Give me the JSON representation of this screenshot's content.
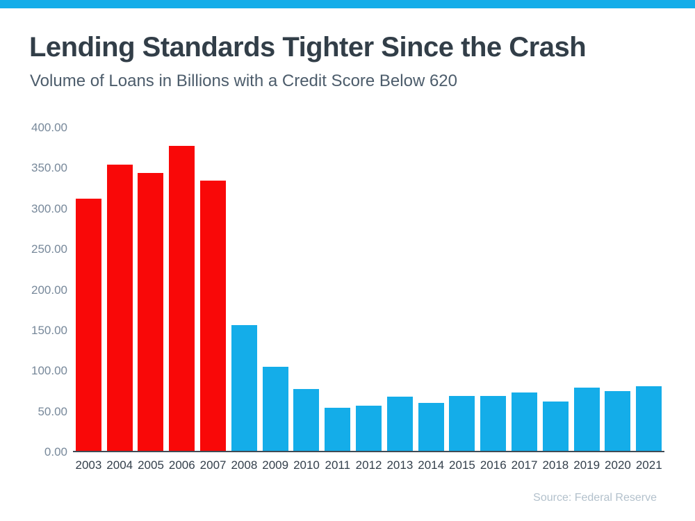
{
  "header": {
    "title": "Lending Standards Tighter Since the Crash",
    "subtitle": "Volume of Loans in Billions with a Credit Score Below 620"
  },
  "footer": {
    "source": "Source: Federal Reserve"
  },
  "colors": {
    "brand_strip": "#14ADE9",
    "bar_blue": "#14ADE9",
    "bar_red": "#F90808",
    "title_text": "#323E48",
    "subtitle_text": "#4C5C6B",
    "axis_tick_text": "#77889A",
    "x_label_text": "#333F4B",
    "source_text": "#B3C1CC",
    "axis_line": "#414B55"
  },
  "chart_data": {
    "type": "bar",
    "title": "Lending Standards Tighter Since the Crash",
    "subtitle": "Volume of Loans in Billions with a Credit Score Below 620",
    "source": "Source: Federal Reserve",
    "categories": [
      "2003",
      "2004",
      "2005",
      "2006",
      "2007",
      "2008",
      "2009",
      "2010",
      "2011",
      "2012",
      "2013",
      "2014",
      "2015",
      "2016",
      "2017",
      "2018",
      "2019",
      "2020",
      "2021"
    ],
    "values": [
      312,
      354,
      344,
      378,
      335,
      156,
      104,
      77,
      53,
      56,
      67,
      59,
      68,
      68,
      72,
      61,
      78,
      74,
      80
    ],
    "highlight_categories": [
      "2003",
      "2004",
      "2005",
      "2006",
      "2007"
    ],
    "bar_color_highlight": "#F90808",
    "bar_color_default": "#14ADE9",
    "xlabel": "",
    "ylabel": "",
    "ylim": [
      0,
      400
    ],
    "ytick_step": 50,
    "ytick_labels": [
      "0.00",
      "50.00",
      "100.00",
      "150.00",
      "200.00",
      "250.00",
      "300.00",
      "350.00",
      "400.00"
    ],
    "grid": false,
    "legend": "none"
  }
}
